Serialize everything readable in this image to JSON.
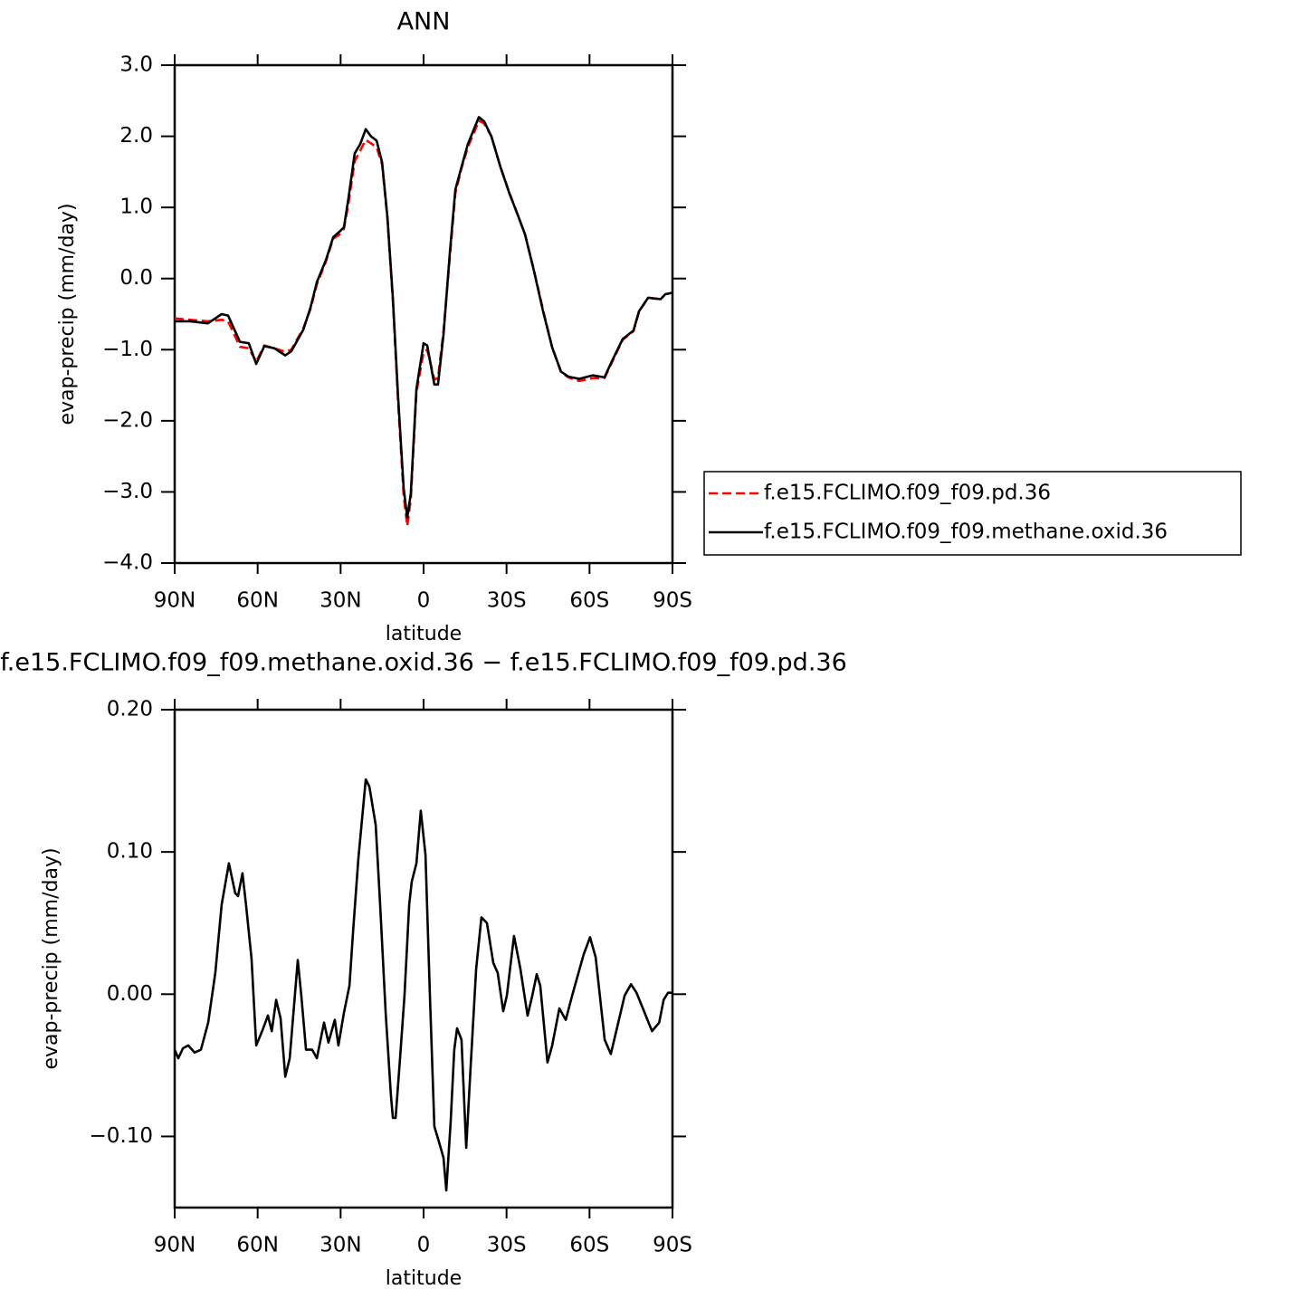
{
  "chart_data": [
    {
      "type": "line",
      "title": "ANN",
      "x_label": "latitude",
      "y_label": "evap-precip (mm/day)",
      "xlim": [
        90,
        -90
      ],
      "xticks": [
        {
          "value": 90,
          "label": "90N"
        },
        {
          "value": 60,
          "label": "60N"
        },
        {
          "value": 30,
          "label": "30N"
        },
        0,
        {
          "value": -30,
          "label": "30S"
        },
        {
          "value": -60,
          "label": "60S"
        },
        {
          "value": -90,
          "label": "90S"
        }
      ],
      "ylim": [
        -4,
        3
      ],
      "yticks": [
        {
          "value": 3,
          "label": "3.0"
        },
        {
          "value": 2,
          "label": "2.0"
        },
        {
          "value": 1,
          "label": "1.0"
        },
        {
          "value": 0,
          "label": "0.0"
        },
        {
          "value": -1,
          "label": "−1.0"
        },
        {
          "value": -2,
          "label": "−2.0"
        },
        {
          "value": -3,
          "label": "−3.0"
        },
        {
          "value": -4,
          "label": "−4.0"
        }
      ],
      "legend": "right",
      "x": [
        90,
        84.4,
        78,
        73,
        70.7,
        66.4,
        63.2,
        60.5,
        57.6,
        54,
        50,
        47.8,
        43.5,
        40.9,
        38.6,
        35.3,
        32.7,
        30.4,
        28.8,
        27.2,
        24.9,
        22.9,
        20.9,
        19,
        17,
        15,
        13.1,
        11.1,
        9.2,
        7.2,
        5.9,
        4.6,
        2.6,
        0,
        -1.3,
        -3.9,
        -5.2,
        -7.2,
        -9.5,
        -11.5,
        -13.7,
        -16,
        -18,
        -20,
        -21.9,
        -24.5,
        -27.8,
        -31.1,
        -34,
        -36.7,
        -39.9,
        -43.2,
        -46.5,
        -49.7,
        -52.4,
        -56.3,
        -61.2,
        -65.4,
        -68.1,
        -72,
        -75.9,
        -77.9,
        -81.2,
        -85.7,
        -87.4,
        -90
      ],
      "series": [
        {
          "name": "f.e15.FCLIMO.f09_f09.pd.36",
          "color": "#ff0000",
          "line_style": "dashed",
          "values": [
            -0.56,
            -0.58,
            -0.6,
            -0.58,
            -0.6,
            -0.96,
            -0.98,
            -1.17,
            -0.94,
            -0.98,
            -1.03,
            -1.0,
            -0.7,
            -0.43,
            -0.08,
            0.24,
            0.56,
            0.62,
            0.7,
            1.05,
            1.65,
            1.8,
            1.95,
            1.9,
            1.85,
            1.6,
            0.85,
            -0.32,
            -1.75,
            -3.05,
            -3.48,
            -3.1,
            -1.6,
            -1.03,
            -1.0,
            -1.42,
            -1.4,
            -0.74,
            0.3,
            1.2,
            1.55,
            1.85,
            2.03,
            2.22,
            2.18,
            2.0,
            1.57,
            1.2,
            0.9,
            0.62,
            0.12,
            -0.44,
            -0.97,
            -1.32,
            -1.39,
            -1.44,
            -1.4,
            -1.4,
            -1.18,
            -0.86,
            -0.74,
            -0.47,
            -0.27,
            -0.29,
            -0.22,
            -0.2
          ]
        },
        {
          "name": "f.e15.FCLIMO.f09_f09.methane.oxid.36",
          "color": "#000000",
          "line_style": "solid",
          "values": [
            -0.6,
            -0.6,
            -0.63,
            -0.5,
            -0.52,
            -0.89,
            -0.91,
            -1.2,
            -0.95,
            -0.98,
            -1.08,
            -1.02,
            -0.72,
            -0.41,
            -0.05,
            0.26,
            0.58,
            0.66,
            0.72,
            1.12,
            1.76,
            1.89,
            2.1,
            2.0,
            1.94,
            1.63,
            0.87,
            -0.28,
            -1.68,
            -2.95,
            -3.36,
            -3.02,
            -1.55,
            -0.91,
            -0.94,
            -1.49,
            -1.49,
            -0.79,
            0.36,
            1.25,
            1.57,
            1.89,
            2.08,
            2.27,
            2.21,
            2.0,
            1.57,
            1.19,
            0.9,
            0.62,
            0.11,
            -0.46,
            -0.97,
            -1.31,
            -1.38,
            -1.41,
            -1.36,
            -1.39,
            -1.16,
            -0.85,
            -0.73,
            -0.46,
            -0.27,
            -0.29,
            -0.22,
            -0.2
          ]
        }
      ]
    },
    {
      "type": "line",
      "title": "f.e15.FCLIMO.f09_f09.methane.oxid.36 − f.e15.FCLIMO.f09_f09.pd.36",
      "x_label": "latitude",
      "y_label": "evap-precip (mm/day)",
      "xlim": [
        90,
        -90
      ],
      "xticks": [
        {
          "value": 90,
          "label": "90N"
        },
        {
          "value": 60,
          "label": "60N"
        },
        {
          "value": 30,
          "label": "30N"
        },
        0,
        {
          "value": -30,
          "label": "30S"
        },
        {
          "value": -60,
          "label": "60S"
        },
        {
          "value": -90,
          "label": "90S"
        }
      ],
      "ylim": [
        -0.15,
        0.2
      ],
      "yticks": [
        {
          "value": 0.2,
          "label": "0.20"
        },
        {
          "value": 0.1,
          "label": "0.10"
        },
        {
          "value": 0,
          "label": "0.00"
        },
        {
          "value": -0.1,
          "label": "−0.10"
        }
      ],
      "color": "#000000",
      "x": [
        90,
        88.7,
        87.0,
        85.1,
        82.8,
        80.5,
        77.9,
        75.3,
        73.0,
        70.4,
        68.1,
        67.1,
        65.5,
        64.2,
        62.2,
        60.5,
        58.2,
        56.3,
        54.9,
        53.3,
        51.7,
        50.0,
        48.4,
        46.8,
        45.5,
        44.2,
        42.5,
        40.3,
        38.6,
        36.0,
        34.4,
        32.1,
        30.8,
        28.8,
        26.8,
        25.5,
        23.6,
        20.9,
        19.6,
        17.3,
        15.7,
        13.7,
        11.8,
        11.1,
        10.1,
        8.5,
        6.9,
        5.2,
        4.3,
        2.6,
        1.0,
        -0.7,
        -2.3,
        -3.9,
        -5.6,
        -7.2,
        -8.2,
        -9.8,
        -11.1,
        -12.1,
        -13.7,
        -15.4,
        -17.0,
        -19.0,
        -20.9,
        -22.9,
        -25.2,
        -26.8,
        -28.8,
        -30.1,
        -32.7,
        -35.0,
        -37.6,
        -39.3,
        -40.9,
        -42.2,
        -44.8,
        -46.5,
        -49.1,
        -51.4,
        -53.7,
        -57.9,
        -60.2,
        -62.2,
        -65.5,
        -67.7,
        -70.4,
        -72.7,
        -75.0,
        -77.0,
        -79.3,
        -82.6,
        -85.2,
        -86.8,
        -88.4,
        -90
      ],
      "values": [
        -0.039,
        -0.045,
        -0.038,
        -0.036,
        -0.041,
        -0.039,
        -0.02,
        0.015,
        0.063,
        0.092,
        0.071,
        0.069,
        0.085,
        0.063,
        0.025,
        -0.036,
        -0.025,
        -0.015,
        -0.026,
        -0.004,
        -0.017,
        -0.058,
        -0.045,
        -0.007,
        0.024,
        -0.001,
        -0.039,
        -0.039,
        -0.045,
        -0.02,
        -0.034,
        -0.018,
        -0.036,
        -0.013,
        0.006,
        0.044,
        0.095,
        0.151,
        0.146,
        0.119,
        0.063,
        -0.013,
        -0.071,
        -0.087,
        -0.087,
        -0.045,
        -0.001,
        0.063,
        0.079,
        0.092,
        0.129,
        0.098,
        -0.001,
        -0.093,
        -0.104,
        -0.115,
        -0.138,
        -0.09,
        -0.039,
        -0.024,
        -0.032,
        -0.108,
        -0.052,
        0.018,
        0.054,
        0.05,
        0.022,
        0.015,
        -0.012,
        -0.001,
        0.041,
        0.018,
        -0.015,
        -0.001,
        0.014,
        0.006,
        -0.048,
        -0.036,
        -0.01,
        -0.018,
        -0.001,
        0.028,
        0.04,
        0.026,
        -0.032,
        -0.042,
        -0.02,
        -0.001,
        0.007,
        0.001,
        -0.01,
        -0.026,
        -0.02,
        -0.004,
        0.001,
        0.001
      ]
    }
  ]
}
